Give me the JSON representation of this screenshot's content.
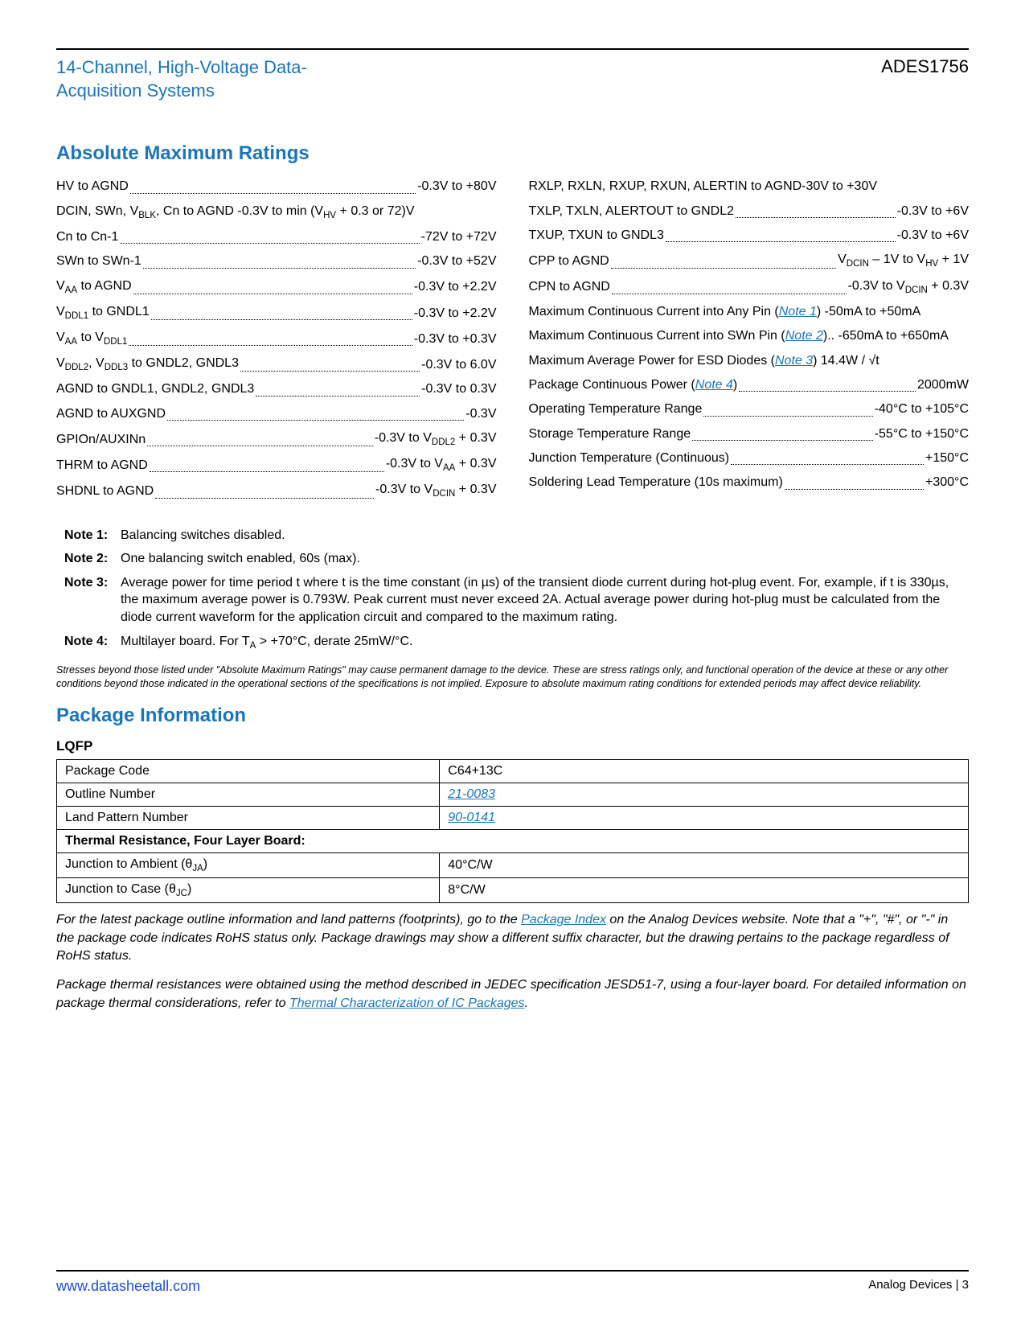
{
  "colors": {
    "brand_blue": "#1a75bb",
    "link_blue": "#1a75bb",
    "footer_link": "#1a4fd6",
    "text": "#000000",
    "bg": "#ffffff"
  },
  "header": {
    "title_line1": "14-Channel, High-Voltage Data-",
    "title_line2": "Acquisition Systems",
    "part_number": "ADES1756"
  },
  "sections": {
    "abs_max": "Absolute Maximum Ratings",
    "pkg_info": "Package Information",
    "lqfp": "LQFP"
  },
  "ratings_left": [
    {
      "label_html": "HV to AGND",
      "value": "-0.3V to +80V",
      "dots": true
    },
    {
      "label_html": "DCIN, SWn, V<sub>BLK</sub>, Cn to AGND -0.3V to min (V<sub>HV</sub> + 0.3 or 72)V",
      "dots": false
    },
    {
      "label_html": "Cn to Cn-1",
      "value": "-72V to +72V",
      "dots": true
    },
    {
      "label_html": "SWn to SWn-1",
      "value": "-0.3V to +52V",
      "dots": true
    },
    {
      "label_html": "V<sub>AA</sub> to AGND",
      "value": "-0.3V to +2.2V",
      "dots": true
    },
    {
      "label_html": "V<sub>DDL1</sub> to GNDL1",
      "value": "-0.3V to +2.2V",
      "dots": true
    },
    {
      "label_html": "V<sub>AA</sub> to V<sub>DDL1</sub>",
      "value": "-0.3V to +0.3V",
      "dots": true
    },
    {
      "label_html": "V<sub>DDL2</sub>, V<sub>DDL3</sub> to GNDL2, GNDL3",
      "value": "-0.3V to 6.0V",
      "dots": true
    },
    {
      "label_html": "AGND to GNDL1, GNDL2, GNDL3",
      "value": "-0.3V to 0.3V",
      "dots": true
    },
    {
      "label_html": "AGND to AUXGND",
      "value": "-0.3V",
      "dots": true
    },
    {
      "label_html": "GPIOn/AUXINn",
      "value_html": "-0.3V to V<sub>DDL2</sub> + 0.3V",
      "dots": true
    },
    {
      "label_html": "THRM to AGND",
      "value_html": "-0.3V to V<sub>AA</sub> + 0.3V",
      "dots": true
    },
    {
      "label_html": "SHDNL to AGND",
      "value_html": "-0.3V to V<sub>DCIN</sub> + 0.3V",
      "dots": true
    }
  ],
  "ratings_right": [
    {
      "label_html": "RXLP, RXLN, RXUP, RXUN, ALERTIN to AGND-30V to +30V",
      "dots": false
    },
    {
      "label_html": "TXLP, TXLN, ALERTOUT to GNDL2",
      "value": "-0.3V to +6V",
      "dots": true
    },
    {
      "label_html": "TXUP, TXUN to GNDL3",
      "value": "-0.3V to +6V",
      "dots": true
    },
    {
      "label_html": "CPP to AGND",
      "value_html": "V<sub>DCIN</sub> – 1V to V<sub>HV</sub> + 1V",
      "dots": true
    },
    {
      "label_html": "CPN to AGND",
      "value_html": "-0.3V to V<sub>DCIN</sub> + 0.3V",
      "dots": true
    },
    {
      "label_html": "Maximum Continuous Current into Any Pin (<a class='link' data-name='note1-link' data-interactable='true'>Note 1</a>) -50mA to +50mA",
      "dots": false
    },
    {
      "label_html": "Maximum Continuous Current into SWn Pin (<a class='link' data-name='note2-link' data-interactable='true'>Note 2</a>).. -650mA to +650mA",
      "dots": false
    },
    {
      "label_html": "Maximum Average Power for ESD Diodes (<a class='link' data-name='note3-link' data-interactable='true'>Note 3</a>) 14.4W / √t",
      "dots": false
    },
    {
      "label_html": "Package Continuous Power (<a class='link' data-name='note4-link' data-interactable='true'>Note 4</a>)",
      "value": "2000mW",
      "dots": true
    },
    {
      "label_html": "Operating Temperature Range",
      "value": "-40°C to +105°C",
      "dots": true
    },
    {
      "label_html": "Storage Temperature Range",
      "value": "-55°C to +150°C",
      "dots": true
    },
    {
      "label_html": "Junction Temperature (Continuous)",
      "value": "+150°C",
      "dots": true
    },
    {
      "label_html": "Soldering Lead Temperature (10s maximum)",
      "value": "+300°C",
      "dots": true
    }
  ],
  "notes": [
    {
      "n": "Note 1:",
      "text_html": "Balancing switches disabled."
    },
    {
      "n": "Note 2:",
      "text_html": "One balancing switch enabled, 60s (max)."
    },
    {
      "n": "Note 3:",
      "text_html": "Average power for time period t where t is the time constant (in µs) of the transient diode current during hot-plug event. For, example, if t is 330µs, the maximum average power is 0.793W. Peak current must never exceed 2A. Actual average power during hot-plug must be calculated from the diode current waveform for the application circuit and compared to the maximum rating."
    },
    {
      "n": "Note 4:",
      "text_html": "Multilayer board. For T<sub>A</sub> > +70°C, derate 25mW/°C."
    }
  ],
  "stress_disclaimer": "Stresses beyond those listed under \"Absolute Maximum Ratings\" may cause permanent damage to the device. These are stress ratings only, and functional operation of the device at these or any other conditions beyond those indicated in the operational sections of the specifications is not implied. Exposure to absolute maximum rating conditions for extended periods may affect device reliability.",
  "package_table": {
    "rows": [
      {
        "label": "Package Code",
        "value_html": "C64+13C",
        "is_link": false
      },
      {
        "label": "Outline Number",
        "value_html": "21-0083",
        "is_link": true
      },
      {
        "label": "Land Pattern Number",
        "value_html": "90-0141",
        "is_link": true
      }
    ],
    "thermal_header": "Thermal Resistance, Four Layer Board:",
    "thermal_rows": [
      {
        "label_html": "Junction to Ambient (θ<sub>JA</sub>)",
        "value": "40°C/W"
      },
      {
        "label_html": "Junction to Case (θ<sub>JC</sub>)",
        "value": "8°C/W"
      }
    ]
  },
  "pkg_notes": {
    "p1_html": "For the latest package outline information and land patterns (footprints), go to the <a class='link-plain' data-name='package-index-link' data-interactable='true'>Package Index</a> on the Analog Devices website. Note that a \"+\", \"#\", or \"-\" in the package code indicates RoHS status only. Package drawings may show a different suffix character, but the drawing pertains to the package regardless of RoHS status.",
    "p2_html": "Package thermal resistances were obtained using the method described in JEDEC specification JESD51-7, using a four-layer board. For detailed information on package thermal considerations, refer to <a class='link-plain' data-name='thermal-char-link' data-interactable='true'>Thermal Characterization of IC Packages</a>."
  },
  "footer": {
    "url": "www.datasheetall.com",
    "right": "Analog Devices | 3"
  }
}
